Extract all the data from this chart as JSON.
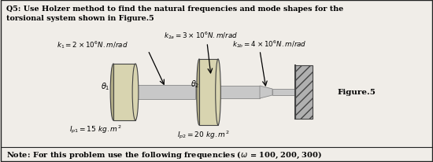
{
  "title_line1": "Q5: Use Holzer method to find the natural frequencies and mode shapes for the",
  "title_line2": "torsional system shown in Figure.5",
  "k1_label": "$k_1 = 2 \\times 10^6 N.m/rad$",
  "k2a_label": "$k_{2a} = 3 \\times 10^6 N.m/rad$",
  "k2b_label": "$k_{2b} = 4 \\times 10^6 N.m/rad$",
  "Ip1_label": "$I_{p1} = 15\\ kg.m^2$",
  "Ip2_label": "$I_{p2} = 20\\ kg.m^2$",
  "theta1_label": "$\\theta_1$",
  "theta2_label": "$\\theta_2$",
  "figure_label": "Figure.5",
  "note": "Note: For this problem use the following frequencies ($\\omega$ = 100, 200, 300)",
  "bg_color": "#f0ede8",
  "border_color": "#222222",
  "disk_facecolor": "#d8d4b0",
  "disk_edgecolor": "#444444",
  "disk_dark": "#b0ab85",
  "shaft_color": "#c8c8c8",
  "shaft_edge": "#888888",
  "wall_face": "#b0b0b0",
  "wall_edge": "#444444",
  "wall_hatch": "///",
  "text_color": "black"
}
